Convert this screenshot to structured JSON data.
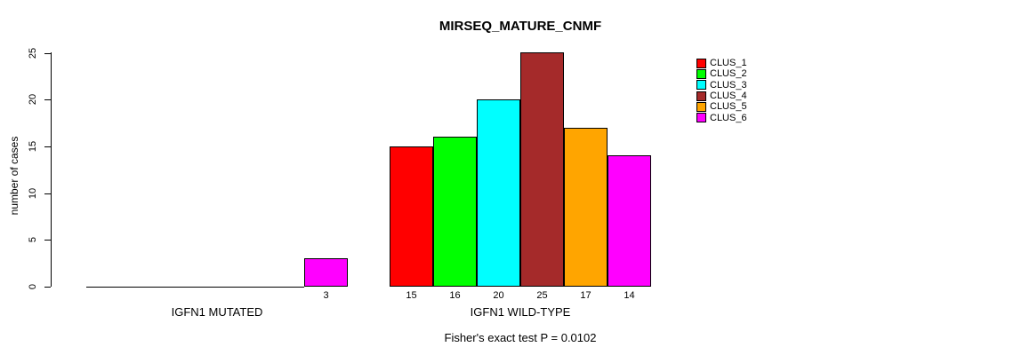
{
  "chart_data": {
    "type": "bar",
    "title": "MIRSEQ_MATURE_CNMF",
    "xlabel": "",
    "ylabel": "number of cases",
    "ylim": [
      0,
      25
    ],
    "yticks": [
      0,
      5,
      10,
      15,
      20,
      25
    ],
    "categories": [
      "IGFN1 MUTATED",
      "IGFN1 WILD-TYPE"
    ],
    "series": [
      {
        "name": "CLUS_1",
        "color": "#FF0000",
        "values": [
          0,
          15
        ]
      },
      {
        "name": "CLUS_2",
        "color": "#00FF00",
        "values": [
          0,
          16
        ]
      },
      {
        "name": "CLUS_3",
        "color": "#00FFFF",
        "values": [
          0,
          20
        ]
      },
      {
        "name": "CLUS_4",
        "color": "#A52A2A",
        "values": [
          0,
          25
        ]
      },
      {
        "name": "CLUS_5",
        "color": "#FFA500",
        "values": [
          0,
          17
        ]
      },
      {
        "name": "CLUS_6",
        "color": "#FF00FF",
        "values": [
          3,
          14
        ]
      }
    ],
    "visible_bar_value_labels": [
      3,
      15,
      16,
      20,
      25,
      17,
      14
    ],
    "annotation": "Fisher's exact test P = 0.0102",
    "legend_position": "right-top",
    "grid": false,
    "background": "#FFFFFF",
    "axis_color": "#000000"
  }
}
